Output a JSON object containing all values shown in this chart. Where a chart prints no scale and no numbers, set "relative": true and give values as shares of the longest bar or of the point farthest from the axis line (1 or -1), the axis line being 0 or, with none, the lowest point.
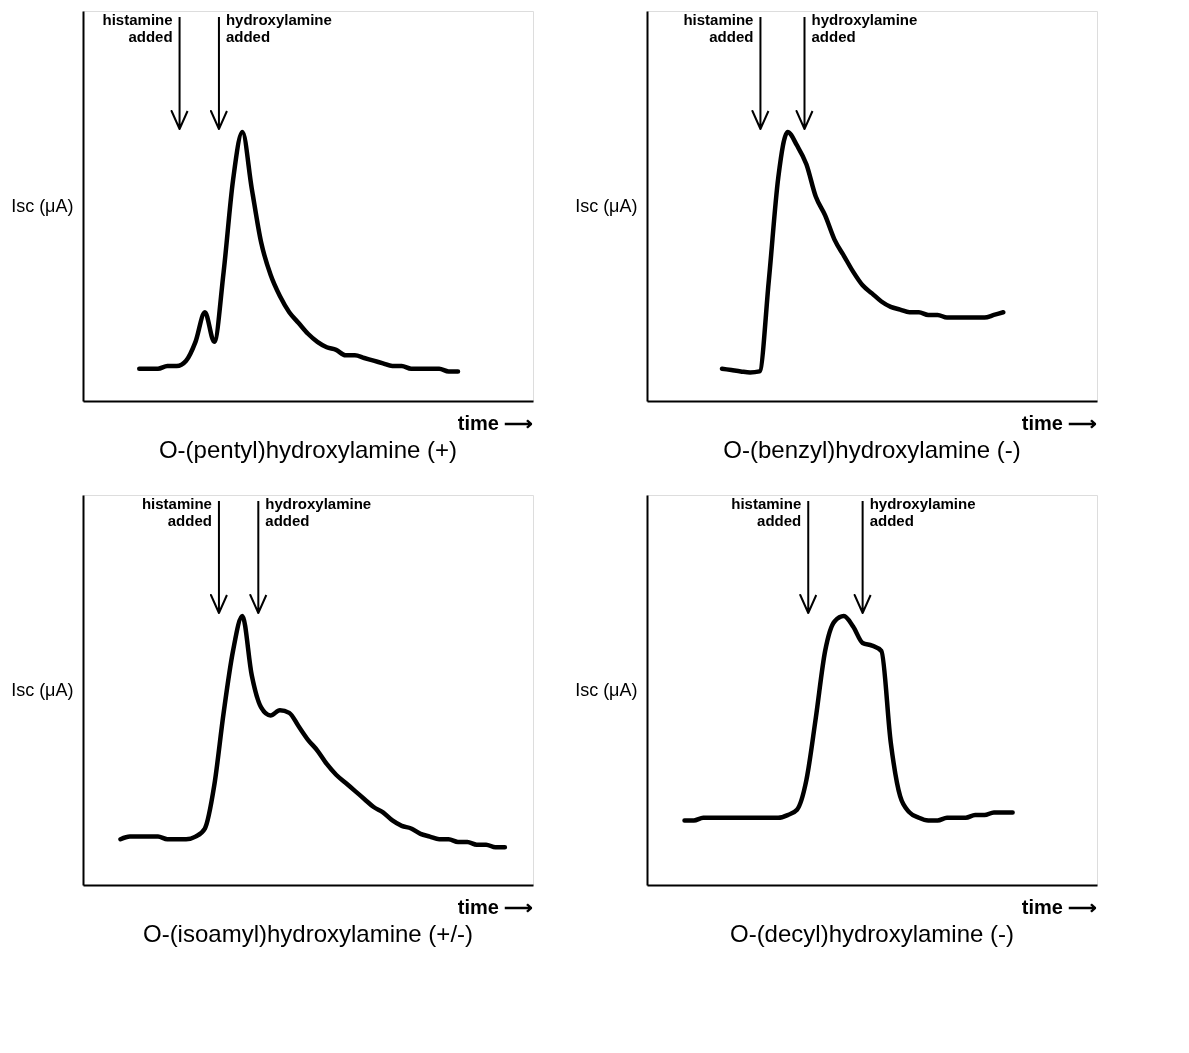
{
  "chart_data": [
    {
      "type": "line",
      "title": "O-(pentyl)hydroxylamine (+)",
      "xlabel": "time ⟶",
      "ylabel": "Isc (μA)",
      "relative": true,
      "categories": [
        null,
        null,
        null,
        null,
        null,
        null,
        null,
        null,
        null,
        null,
        null,
        null,
        null,
        null,
        null,
        null,
        null,
        null,
        null,
        null,
        null,
        null,
        null,
        null,
        null,
        null,
        null,
        null,
        null,
        null,
        null,
        null,
        null,
        null,
        null,
        null,
        null,
        null,
        null,
        null,
        null,
        null,
        null,
        null,
        null,
        null,
        null,
        null,
        null
      ],
      "annotations": [
        "histamine added",
        "hydroxylamine added"
      ],
      "series": [
        {
          "color": "#000000",
          "values": [
            null,
            null,
            null,
            null,
            null,
            null,
            0.12,
            0.12,
            0.12,
            0.13,
            0.13,
            0.15,
            0.22,
            0.33,
            0.22,
            0.48,
            0.82,
            1.0,
            0.79,
            0.59,
            0.47,
            0.39,
            0.33,
            0.29,
            0.25,
            0.22,
            0.2,
            0.19,
            0.17,
            0.17,
            0.16,
            0.15,
            0.14,
            0.13,
            0.13,
            0.12,
            0.12,
            0.12,
            0.12,
            0.11,
            0.11,
            null,
            null,
            null,
            null,
            null,
            null,
            null,
            null
          ]
        }
      ]
    },
    {
      "type": "line",
      "title": "O-(benzyl)hydroxylamine (-)",
      "xlabel": "time ⟶",
      "ylabel": "Isc (μA)",
      "relative": true,
      "categories": [
        null,
        null,
        null,
        null,
        null,
        null,
        null,
        null,
        null,
        null,
        null,
        null,
        null,
        null,
        null,
        null,
        null,
        null,
        null,
        null,
        null,
        null,
        null,
        null,
        null,
        null,
        null,
        null,
        null,
        null,
        null,
        null,
        null,
        null,
        null,
        null,
        null,
        null,
        null,
        null,
        null,
        null,
        null,
        null,
        null,
        null,
        null,
        null,
        null
      ],
      "annotations": [
        "histamine added",
        "hydroxylamine added"
      ],
      "series": [
        {
          "color": "#000000",
          "values": [
            null,
            null,
            null,
            null,
            null,
            null,
            null,
            null,
            0.12,
            0.115,
            0.11,
            0.106,
            0.11,
            0.45,
            0.83,
            1.0,
            0.95,
            0.88,
            0.76,
            0.69,
            0.6,
            0.54,
            0.48,
            0.43,
            0.4,
            0.37,
            0.35,
            0.34,
            0.33,
            0.33,
            0.32,
            0.32,
            0.31,
            0.31,
            0.31,
            0.31,
            0.31,
            0.32,
            0.33,
            null,
            null,
            null,
            null,
            null,
            null,
            null,
            null,
            null,
            null
          ]
        }
      ]
    },
    {
      "type": "line",
      "title": "O-(isoamyl)hydroxylamine (+/-)",
      "xlabel": "time ⟶",
      "ylabel": "Isc (μA)",
      "relative": true,
      "categories": [
        null,
        null,
        null,
        null,
        null,
        null,
        null,
        null,
        null,
        null,
        null,
        null,
        null,
        null,
        null,
        null,
        null,
        null,
        null,
        null,
        null,
        null,
        null,
        null,
        null,
        null,
        null,
        null,
        null,
        null,
        null,
        null,
        null,
        null,
        null,
        null,
        null,
        null,
        null,
        null,
        null,
        null,
        null,
        null,
        null,
        null,
        null,
        null,
        null
      ],
      "annotations": [
        "histamine added",
        "hydroxylamine added"
      ],
      "series": [
        {
          "color": "#000000",
          "values": [
            null,
            null,
            null,
            null,
            0.17,
            0.18,
            0.18,
            0.18,
            0.18,
            0.17,
            0.17,
            0.17,
            0.18,
            0.21,
            0.37,
            0.64,
            0.87,
            1.0,
            0.78,
            0.66,
            0.63,
            0.65,
            0.64,
            0.59,
            0.54,
            0.5,
            0.45,
            0.41,
            0.38,
            0.35,
            0.32,
            0.29,
            0.27,
            0.24,
            0.22,
            0.21,
            0.19,
            0.18,
            0.17,
            0.17,
            0.16,
            0.16,
            0.15,
            0.15,
            0.14,
            0.14,
            null,
            null,
            null
          ]
        }
      ]
    },
    {
      "type": "line",
      "title": "O-(decyl)hydroxylamine (-)",
      "xlabel": "time ⟶",
      "ylabel": "Isc (μA)",
      "relative": true,
      "categories": [
        null,
        null,
        null,
        null,
        null,
        null,
        null,
        null,
        null,
        null,
        null,
        null,
        null,
        null,
        null,
        null,
        null,
        null,
        null,
        null,
        null,
        null,
        null,
        null,
        null,
        null,
        null,
        null,
        null,
        null,
        null,
        null,
        null,
        null,
        null,
        null,
        null,
        null,
        null,
        null,
        null,
        null,
        null,
        null,
        null,
        null,
        null,
        null,
        null
      ],
      "annotations": [
        "histamine added",
        "hydroxylamine added"
      ],
      "series": [
        {
          "color": "#000000",
          "values": [
            null,
            null,
            null,
            null,
            0.24,
            0.24,
            0.25,
            0.25,
            0.25,
            0.25,
            0.25,
            0.25,
            0.25,
            0.25,
            0.25,
            0.26,
            0.28,
            0.39,
            0.62,
            0.87,
            0.98,
            1.0,
            0.96,
            0.9,
            0.89,
            0.87,
            0.53,
            0.33,
            0.27,
            0.25,
            0.24,
            0.24,
            0.25,
            0.25,
            0.25,
            0.26,
            0.26,
            0.27,
            0.27,
            0.27,
            null,
            null,
            null,
            null,
            null,
            null,
            null,
            null,
            null
          ]
        }
      ]
    }
  ]
}
